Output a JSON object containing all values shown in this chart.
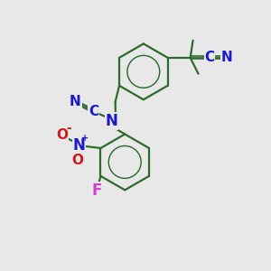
{
  "bg_color": "#e8e8e8",
  "bond_color": "#2d6b2d",
  "bond_width": 1.6,
  "atom_colors": {
    "N": "#1a1acc",
    "C": "#1a1acc",
    "O": "#cc1a1a",
    "F": "#cc44cc",
    "NO_plus": "#1a1acc",
    "O_minus": "#cc1a1a"
  },
  "font_size": 11,
  "font_size_small": 9
}
